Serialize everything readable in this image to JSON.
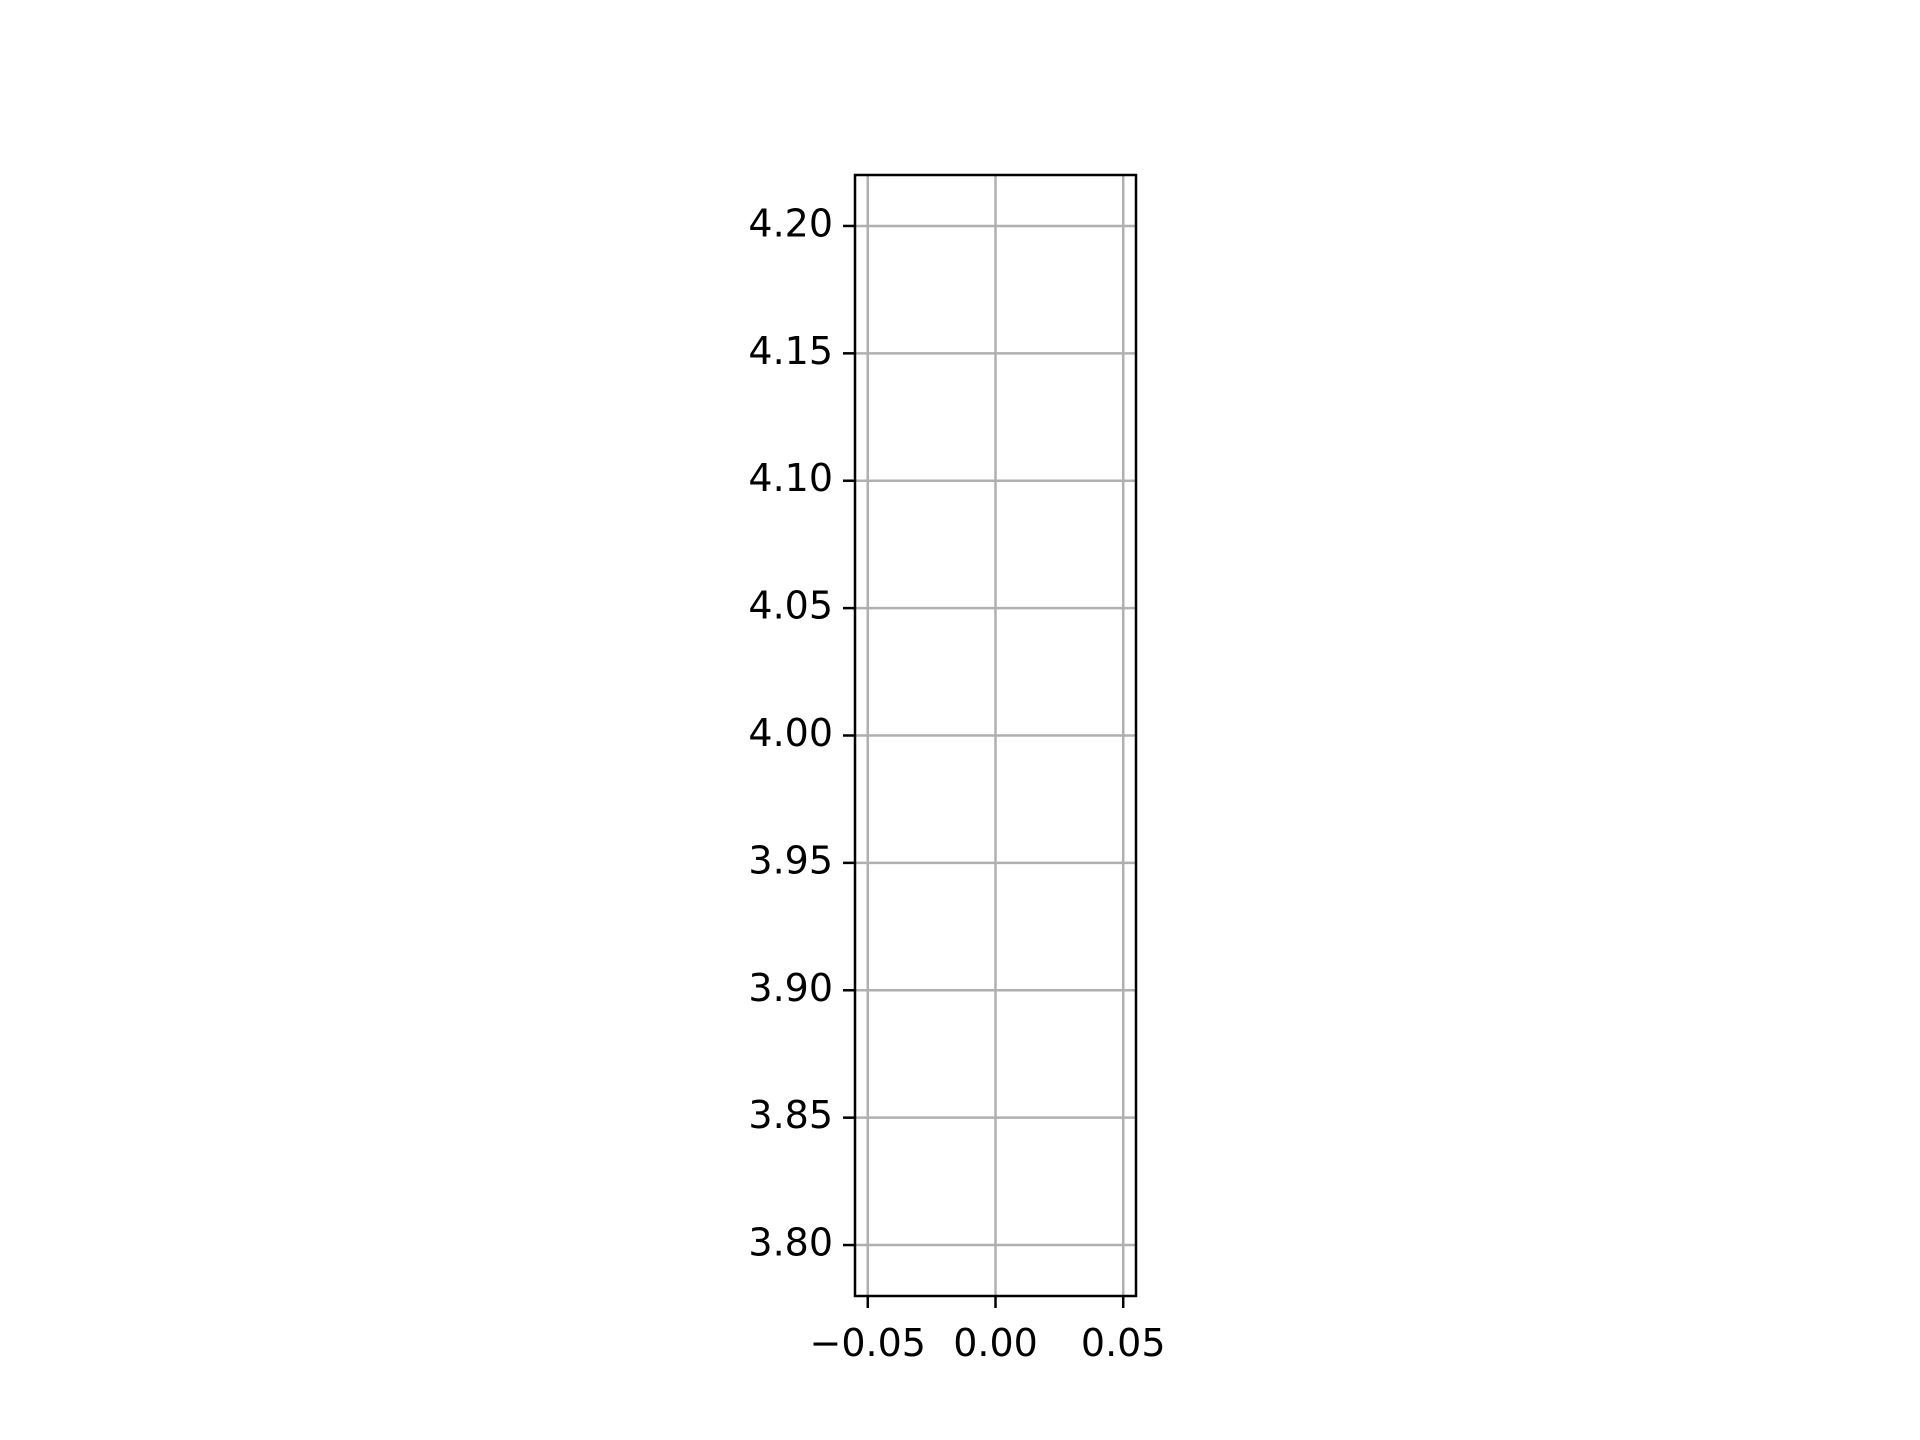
{
  "chart_data": {
    "type": "scatter",
    "title": "",
    "xlabel": "",
    "ylabel": "",
    "xlim": [
      -0.055,
      0.055
    ],
    "ylim": [
      3.78,
      4.22
    ],
    "grid": true,
    "legend": "none",
    "series": [],
    "x_ticks": [
      {
        "value": -0.05,
        "label": "−0.05"
      },
      {
        "value": 0.0,
        "label": "0.00"
      },
      {
        "value": 0.05,
        "label": "0.05"
      }
    ],
    "y_ticks": [
      {
        "value": 3.8,
        "label": "3.80"
      },
      {
        "value": 3.85,
        "label": "3.85"
      },
      {
        "value": 3.9,
        "label": "3.90"
      },
      {
        "value": 3.95,
        "label": "3.95"
      },
      {
        "value": 4.0,
        "label": "4.00"
      },
      {
        "value": 4.05,
        "label": "4.05"
      },
      {
        "value": 4.1,
        "label": "4.10"
      },
      {
        "value": 4.15,
        "label": "4.15"
      },
      {
        "value": 4.2,
        "label": "4.20"
      }
    ],
    "colors": {
      "grid": "#b0b0b0",
      "axes": "#000000",
      "text": "#000000",
      "background": "#ffffff"
    }
  }
}
